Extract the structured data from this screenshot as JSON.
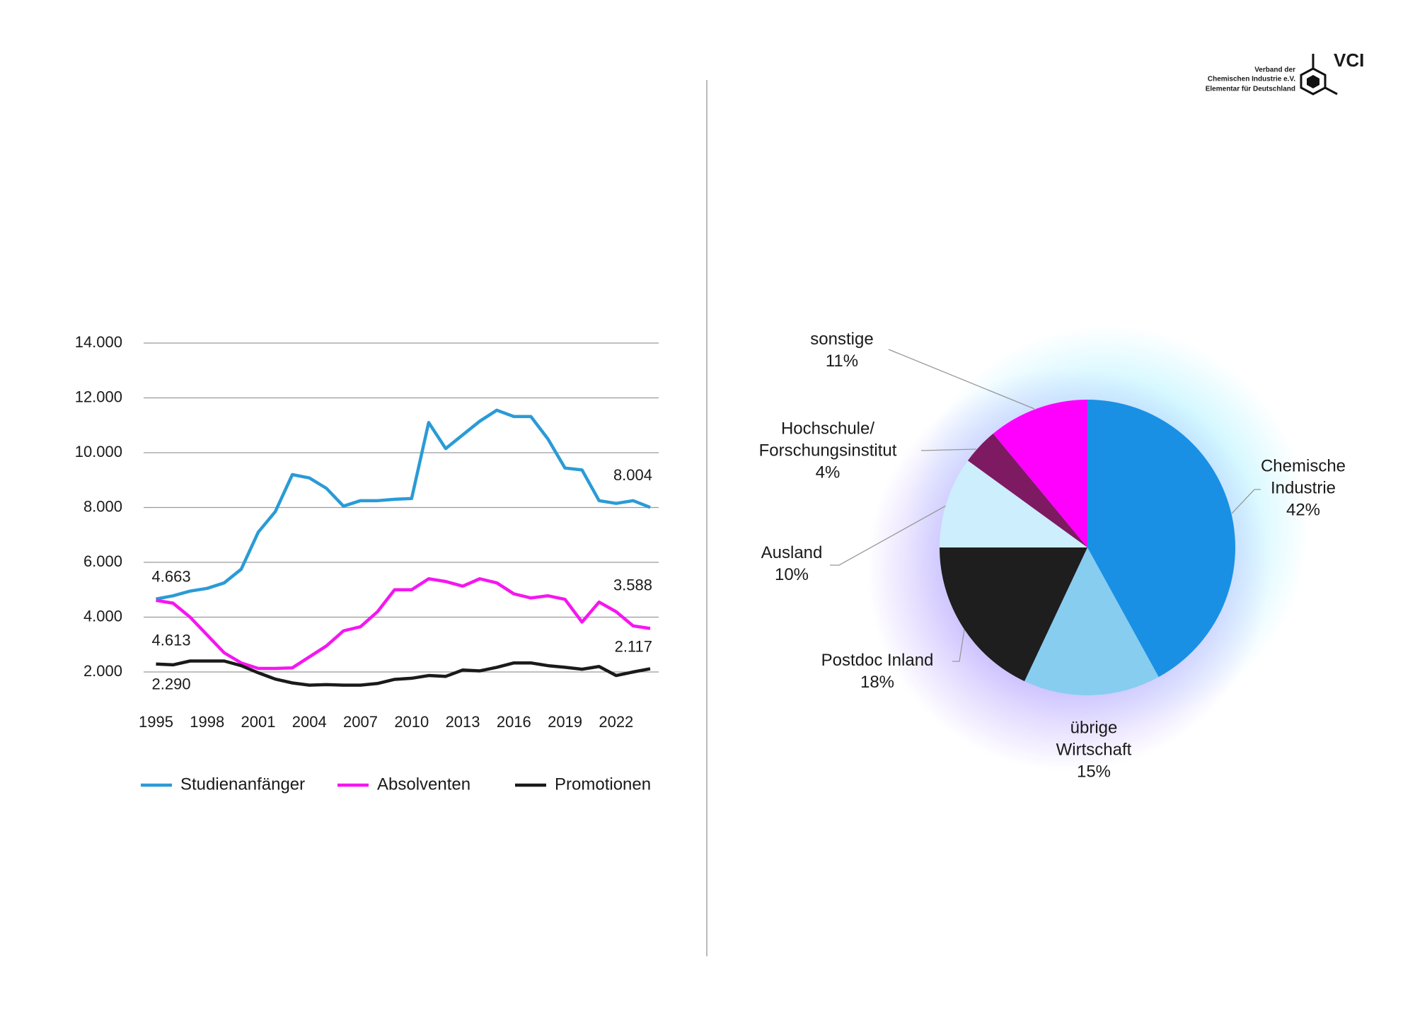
{
  "logo": {
    "lines": [
      "Verband der",
      "Chemischen Industrie e.V.",
      "Elementar für Deutschland"
    ],
    "name": "VCI"
  },
  "chart_data": [
    {
      "type": "line",
      "x": [
        1995,
        1996,
        1997,
        1998,
        1999,
        2000,
        2001,
        2002,
        2003,
        2004,
        2005,
        2006,
        2007,
        2008,
        2009,
        2010,
        2011,
        2012,
        2013,
        2014,
        2015,
        2016,
        2017,
        2018,
        2019,
        2020,
        2021,
        2022,
        2023,
        2024
      ],
      "xlim": [
        1995,
        2024
      ],
      "xticks": [
        1995,
        1998,
        2001,
        2004,
        2007,
        2010,
        2013,
        2016,
        2019,
        2022
      ],
      "ylim": [
        1000,
        14000
      ],
      "yticks": [
        {
          "value": 2000,
          "label": "2.000"
        },
        {
          "value": 4000,
          "label": "4.000"
        },
        {
          "value": 6000,
          "label": "6.000"
        },
        {
          "value": 8000,
          "label": "8.000"
        },
        {
          "value": 10000,
          "label": "10.000"
        },
        {
          "value": 12000,
          "label": "12.000"
        },
        {
          "value": 14000,
          "label": "14.000"
        }
      ],
      "grid": true,
      "legend": "bottom",
      "series": [
        {
          "name": "Studienanfänger",
          "color": "#2a9bd6",
          "values": [
            4663,
            4780,
            4950,
            5050,
            5250,
            5750,
            7100,
            7850,
            9200,
            9080,
            8700,
            8050,
            8250,
            8250,
            8300,
            8330,
            11100,
            10150,
            10650,
            11150,
            11550,
            11320,
            11320,
            10500,
            9440,
            9370,
            8250,
            8150,
            8250,
            8004
          ],
          "value_labels": [
            "4.663",
            null,
            null,
            null,
            null,
            null,
            null,
            null,
            null,
            null,
            null,
            null,
            null,
            null,
            null,
            null,
            null,
            null,
            null,
            null,
            null,
            null,
            null,
            null,
            null,
            null,
            null,
            null,
            null,
            "8.004"
          ]
        },
        {
          "name": "Absolventen",
          "color": "#f516f0",
          "values": [
            4613,
            4510,
            4000,
            3350,
            2700,
            2330,
            2130,
            2130,
            2150,
            2550,
            2950,
            3500,
            3650,
            4200,
            5000,
            5000,
            5400,
            5300,
            5130,
            5400,
            5250,
            4850,
            4700,
            4780,
            4650,
            3820,
            4550,
            4200,
            3680,
            3588
          ],
          "value_labels": [
            "4.613",
            null,
            null,
            null,
            null,
            null,
            null,
            null,
            null,
            null,
            null,
            null,
            null,
            null,
            null,
            null,
            null,
            null,
            null,
            null,
            null,
            null,
            null,
            null,
            null,
            null,
            null,
            null,
            null,
            "3.588"
          ]
        },
        {
          "name": "Promotionen",
          "color": "#1a1a1a",
          "values": [
            2290,
            2260,
            2400,
            2400,
            2400,
            2230,
            1970,
            1740,
            1600,
            1520,
            1540,
            1520,
            1520,
            1580,
            1730,
            1770,
            1870,
            1840,
            2070,
            2040,
            2170,
            2330,
            2330,
            2230,
            2170,
            2100,
            2200,
            1870,
            2000,
            2117
          ],
          "value_labels": [
            "2.290",
            null,
            null,
            null,
            null,
            null,
            null,
            null,
            null,
            null,
            null,
            null,
            null,
            null,
            null,
            null,
            null,
            null,
            null,
            null,
            null,
            null,
            null,
            null,
            null,
            null,
            null,
            null,
            null,
            "2.117"
          ]
        }
      ]
    },
    {
      "type": "pie",
      "categories": [
        "Chemische\nIndustrie",
        "übrige\nWirtschaft",
        "Postdoc Inland",
        "Ausland",
        "Hochschule/\nForschungsinstitut",
        "sonstige"
      ],
      "values": [
        42,
        15,
        18,
        10,
        4,
        11
      ],
      "value_labels": [
        "42%",
        "15%",
        "18%",
        "10%",
        "4%",
        "11%"
      ],
      "colors": [
        "#1990e4",
        "#87cdf0",
        "#1e1e1e",
        "#cdeefc",
        "#7d1a62",
        "#ff00ff"
      ]
    }
  ]
}
